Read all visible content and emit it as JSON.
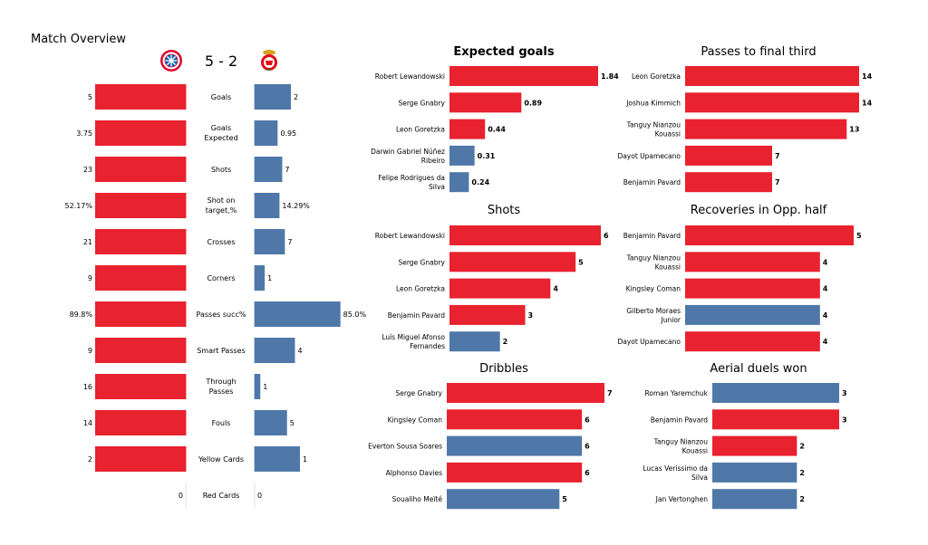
{
  "header": {
    "title": "Match Overview",
    "score": "5 - 2"
  },
  "teams": {
    "home": {
      "name_icon": "bayern-munich-crest-icon",
      "color": "#e8222e"
    },
    "away": {
      "name_icon": "benfica-crest-icon",
      "color": "#4f78a8"
    }
  },
  "chart_data": [
    {
      "type": "bar",
      "name": "match-overview",
      "title": "",
      "categories": [
        "Goals",
        "Goals Expected",
        "Shots",
        "Shot on target,%",
        "Crosses",
        "Corners",
        "Passes succ%",
        "Smart Passes",
        "Through Passes",
        "Fouls",
        "Yellow Cards",
        "Red Cards"
      ],
      "series": [
        {
          "team": "home",
          "values": [
            5,
            3.75,
            23,
            52.17,
            21,
            9,
            89.8,
            9,
            16,
            14,
            2,
            0
          ],
          "labels": [
            "5",
            "3.75",
            "23",
            "52.17%",
            "21",
            "9",
            "89.8%",
            "9",
            "16",
            "14",
            "2",
            "0"
          ]
        },
        {
          "team": "away",
          "values": [
            2,
            0.95,
            7,
            14.29,
            7,
            1,
            85.0,
            4,
            1,
            5,
            1,
            0
          ],
          "labels": [
            "2",
            "0.95",
            "7",
            "14.29%",
            "7",
            "1",
            "85.0%",
            "4",
            "1",
            "5",
            "1",
            "0"
          ]
        }
      ]
    },
    {
      "type": "bar",
      "orientation": "horizontal",
      "title": "Expected goals",
      "categories": [
        "Robert Lewandowski",
        "Serge  Gnabry",
        "Leon  Goretzka",
        "Darwin Gabriel Núñez Ribeiro",
        "Felipe Rodrigues da Silva"
      ],
      "values": [
        1.84,
        0.89,
        0.44,
        0.31,
        0.24
      ],
      "labels": [
        "1.84",
        "0.89",
        "0.44",
        "0.31",
        "0.24"
      ],
      "teams": [
        "home",
        "home",
        "home",
        "away",
        "away"
      ]
    },
    {
      "type": "bar",
      "orientation": "horizontal",
      "title": "Passes to final third",
      "categories": [
        "Leon  Goretzka",
        "Joshua Kimmich",
        "Tanguy Nianzou Kouassi",
        "Dayot Upamecano",
        "Benjamin Pavard"
      ],
      "values": [
        14,
        14,
        13,
        7,
        7
      ],
      "labels": [
        "14",
        "14",
        "13",
        "7",
        "7"
      ],
      "teams": [
        "home",
        "home",
        "home",
        "home",
        "home"
      ]
    },
    {
      "type": "bar",
      "orientation": "horizontal",
      "title": "Shots",
      "categories": [
        "Robert Lewandowski",
        "Serge  Gnabry",
        "Leon  Goretzka",
        "Benjamin Pavard",
        "Luís Miguel Afonso Fernandes"
      ],
      "values": [
        6,
        5,
        4,
        3,
        2
      ],
      "labels": [
        "6",
        "5",
        "4",
        "3",
        "2"
      ],
      "teams": [
        "home",
        "home",
        "home",
        "home",
        "away"
      ]
    },
    {
      "type": "bar",
      "orientation": "horizontal",
      "title": "Recoveries in Opp. half",
      "categories": [
        "Benjamin Pavard",
        "Tanguy Nianzou Kouassi",
        "Kingsley Coman",
        "Gilberto Moraes Junior",
        "Dayot Upamecano"
      ],
      "values": [
        5,
        4,
        4,
        4,
        4
      ],
      "labels": [
        "5",
        "4",
        "4",
        "4",
        "4"
      ],
      "teams": [
        "home",
        "home",
        "home",
        "away",
        "home"
      ]
    },
    {
      "type": "bar",
      "orientation": "horizontal",
      "title": "Dribbles",
      "categories": [
        "Serge  Gnabry",
        "Kingsley Coman",
        "Everton Sousa Soares",
        "Alphonso Davies",
        "Soualiho Meïté"
      ],
      "values": [
        7,
        6,
        6,
        6,
        5
      ],
      "labels": [
        "7",
        "6",
        "6",
        "6",
        "5"
      ],
      "teams": [
        "home",
        "home",
        "away",
        "home",
        "away"
      ]
    },
    {
      "type": "bar",
      "orientation": "horizontal",
      "title": "Aerial duels won",
      "categories": [
        "Roman Yaremchuk",
        "Benjamin Pavard",
        "Tanguy Nianzou Kouassi",
        "Lucas Verissimo da Silva",
        "Jan Vertonghen"
      ],
      "values": [
        3,
        3,
        2,
        2,
        2
      ],
      "labels": [
        "3",
        "3",
        "2",
        "2",
        "2"
      ],
      "teams": [
        "away",
        "home",
        "home",
        "away",
        "away"
      ]
    }
  ]
}
